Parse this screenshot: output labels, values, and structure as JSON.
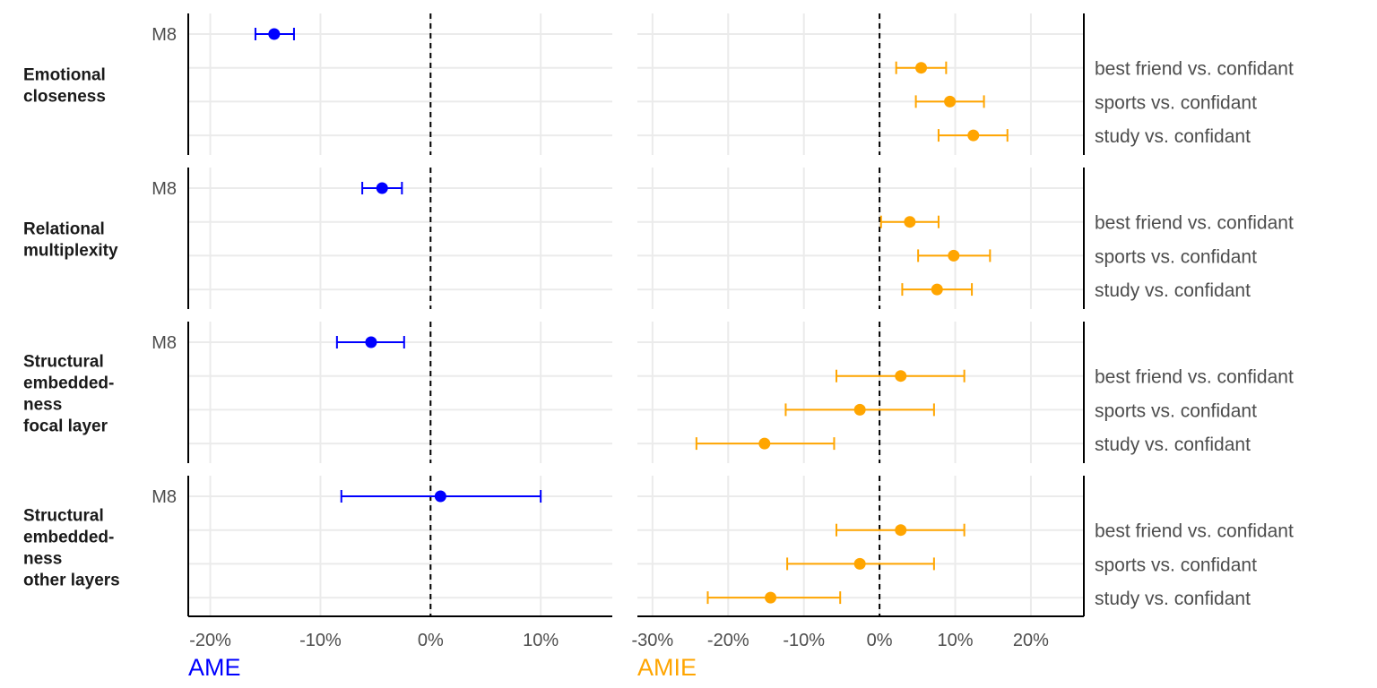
{
  "chart_data": {
    "type": "forest",
    "colors": {
      "ame": "#0000ff",
      "amie": "#ffa500"
    },
    "left": {
      "title": "AME",
      "xlim": [
        -22,
        16.5
      ],
      "xticks": [
        -20,
        -10,
        0,
        10
      ],
      "tick_labels": [
        "-20%",
        "-10%",
        "0%",
        "10%"
      ]
    },
    "right": {
      "title": "AMIE",
      "xlim": [
        -32,
        27
      ],
      "xticks": [
        -30,
        -20,
        -10,
        0,
        10,
        20
      ],
      "tick_labels": [
        "-30%",
        "-20%",
        "-10%",
        "0%",
        "10%",
        "20%"
      ]
    },
    "left_row_label": "M8",
    "right_row_labels": [
      "best friend vs. confidant",
      "sports vs. confidant",
      "study vs. confidant"
    ],
    "reference_line": 0,
    "grid": true,
    "panels": [
      {
        "label_lines": [
          "Emotional",
          "closeness"
        ],
        "ame": {
          "est": -14.2,
          "lo": -15.9,
          "hi": -12.4
        },
        "amie": [
          {
            "est": 5.5,
            "lo": 2.2,
            "hi": 8.8
          },
          {
            "est": 9.3,
            "lo": 4.8,
            "hi": 13.8
          },
          {
            "est": 12.4,
            "lo": 7.8,
            "hi": 16.9
          }
        ]
      },
      {
        "label_lines": [
          "Relational",
          "multiplexity"
        ],
        "ame": {
          "est": -4.4,
          "lo": -6.2,
          "hi": -2.6
        },
        "amie": [
          {
            "est": 4.0,
            "lo": 0.2,
            "hi": 7.8
          },
          {
            "est": 9.8,
            "lo": 5.1,
            "hi": 14.6
          },
          {
            "est": 7.6,
            "lo": 3.0,
            "hi": 12.2
          }
        ]
      },
      {
        "label_lines": [
          "Structural",
          "embedded-",
          "ness",
          "focal layer"
        ],
        "ame": {
          "est": -5.4,
          "lo": -8.5,
          "hi": -2.4
        },
        "amie": [
          {
            "est": 2.8,
            "lo": -5.7,
            "hi": 11.2
          },
          {
            "est": -2.6,
            "lo": -12.4,
            "hi": 7.2
          },
          {
            "est": -15.2,
            "lo": -24.2,
            "hi": -6.0
          }
        ]
      },
      {
        "label_lines": [
          "Structural",
          "embedded-",
          "ness",
          "other layers"
        ],
        "ame": {
          "est": 0.9,
          "lo": -8.1,
          "hi": 10.0
        },
        "amie": [
          {
            "est": 2.8,
            "lo": -5.7,
            "hi": 11.2
          },
          {
            "est": -2.6,
            "lo": -12.2,
            "hi": 7.2
          },
          {
            "est": -14.4,
            "lo": -22.7,
            "hi": -5.2
          }
        ]
      }
    ]
  }
}
